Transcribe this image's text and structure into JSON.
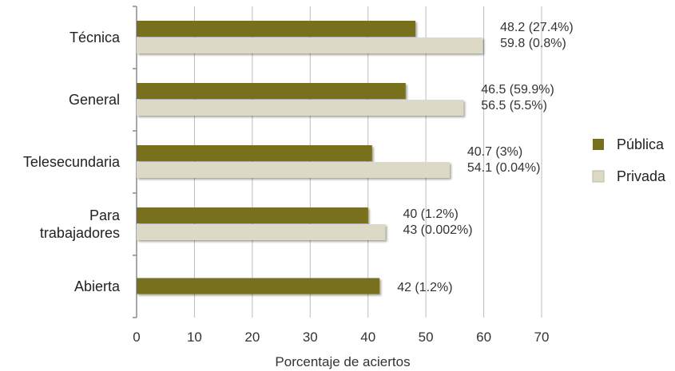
{
  "chart_data": {
    "type": "bar",
    "orientation": "horizontal",
    "categories": [
      [
        "Técnica"
      ],
      [
        "General"
      ],
      [
        "Telesecundaria"
      ],
      [
        "Para",
        "trabajadores"
      ],
      [
        "Abierta"
      ]
    ],
    "series": [
      {
        "name": "Pública",
        "color": "#786f1e",
        "values": [
          48.2,
          46.5,
          40.7,
          40,
          42
        ]
      },
      {
        "name": "Privada",
        "color": "#dcd9c4",
        "values": [
          59.8,
          56.5,
          54.1,
          43,
          null
        ]
      }
    ],
    "data_labels": [
      [
        "48.2 (27.4%)",
        "59.8 (0.8%)"
      ],
      [
        "46.5 (59.9%)",
        "56.5 (5.5%)"
      ],
      [
        "40.7 (3%)",
        "54.1 (0.04%)"
      ],
      [
        "40 (1.2%)",
        "43 (0.002%)"
      ],
      [
        "42 (1.2%)"
      ]
    ],
    "xlabel": "Porcentaje de aciertos",
    "xlim": [
      0,
      70
    ],
    "xticks": [
      "0",
      "10",
      "20",
      "30",
      "40",
      "50",
      "60",
      "70"
    ],
    "grid": "vertical",
    "legend_position": "right"
  }
}
